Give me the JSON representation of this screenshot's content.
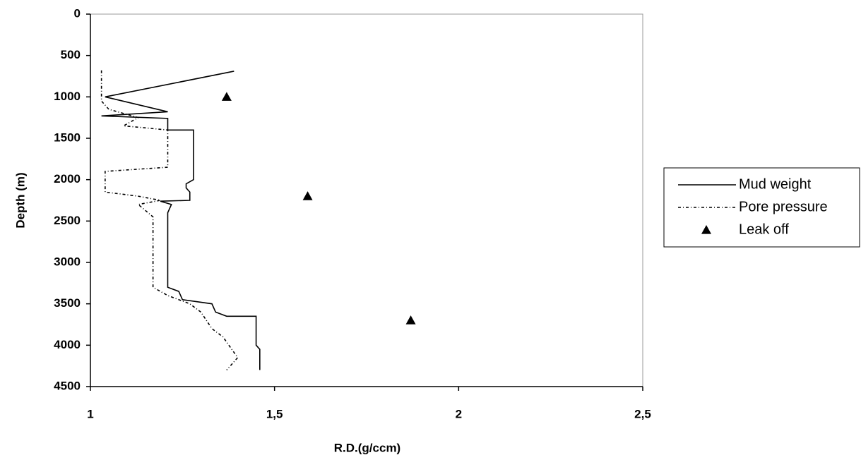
{
  "chart_data": {
    "type": "line",
    "x_label": "R.D.(g/ccm)",
    "y_label": "Depth (m)",
    "xlim": [
      1,
      2.5
    ],
    "xticks": [
      1,
      {
        "value": 1.5,
        "label": "1,5"
      },
      2,
      {
        "value": 2.5,
        "label": "2,5"
      }
    ],
    "ylim": [
      0,
      4500
    ],
    "yticks": [
      0,
      500,
      1000,
      1500,
      2000,
      2500,
      3000,
      3500,
      4000,
      4500
    ],
    "y_inverted": true,
    "legend": "right",
    "series": [
      {
        "name": "Mud weight",
        "color": "#000000",
        "style": "solid",
        "x": [
          1.39,
          1.04,
          1.21,
          1.03,
          1.21,
          1.21,
          1.28,
          1.28,
          1.26,
          1.26,
          1.27,
          1.27,
          1.19,
          1.22,
          1.21,
          1.21,
          1.21,
          1.24,
          1.25,
          1.33,
          1.34,
          1.37,
          1.45,
          1.45,
          1.46,
          1.46
        ],
        "values": [
          690,
          1000,
          1180,
          1230,
          1260,
          1400,
          1400,
          2000,
          2050,
          2100,
          2150,
          2250,
          2260,
          2300,
          2400,
          2450,
          3300,
          3350,
          3450,
          3500,
          3600,
          3650,
          3650,
          4000,
          4050,
          4300
        ]
      },
      {
        "name": "Pore pressure",
        "color": "#000000",
        "style": "dashed",
        "x": [
          1.03,
          1.03,
          1.05,
          1.13,
          1.09,
          1.21,
          1.21,
          1.04,
          1.04,
          1.13,
          1.19,
          1.13,
          1.17,
          1.17,
          1.21,
          1.27,
          1.3,
          1.33,
          1.36,
          1.4,
          1.37
        ],
        "values": [
          680,
          1050,
          1150,
          1250,
          1350,
          1400,
          1850,
          1900,
          2150,
          2200,
          2250,
          2300,
          2450,
          3300,
          3400,
          3500,
          3600,
          3800,
          3900,
          4150,
          4300
        ]
      },
      {
        "name": "Leak off",
        "color": "#000000",
        "style": "triangle",
        "x": [
          1.37,
          1.59,
          1.87
        ],
        "values": [
          1000,
          2200,
          3700
        ]
      }
    ]
  }
}
